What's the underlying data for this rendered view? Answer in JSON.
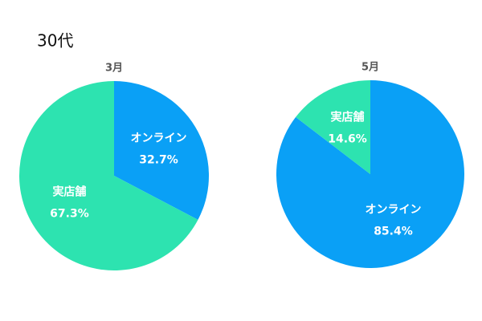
{
  "page_title": "30代",
  "chart_data": [
    {
      "type": "pie",
      "title": "3月",
      "categories": [
        "オンライン",
        "実店舗"
      ],
      "values": [
        32.7,
        67.3
      ],
      "value_labels": [
        "32.7%",
        "67.3%"
      ],
      "colors": [
        "#0aa0f6",
        "#2de3b0"
      ]
    },
    {
      "type": "pie",
      "title": "5月",
      "categories": [
        "オンライン",
        "実店舗"
      ],
      "values": [
        85.4,
        14.6
      ],
      "value_labels": [
        "85.4%",
        "14.6%"
      ],
      "colors": [
        "#0aa0f6",
        "#2de3b0"
      ]
    }
  ]
}
